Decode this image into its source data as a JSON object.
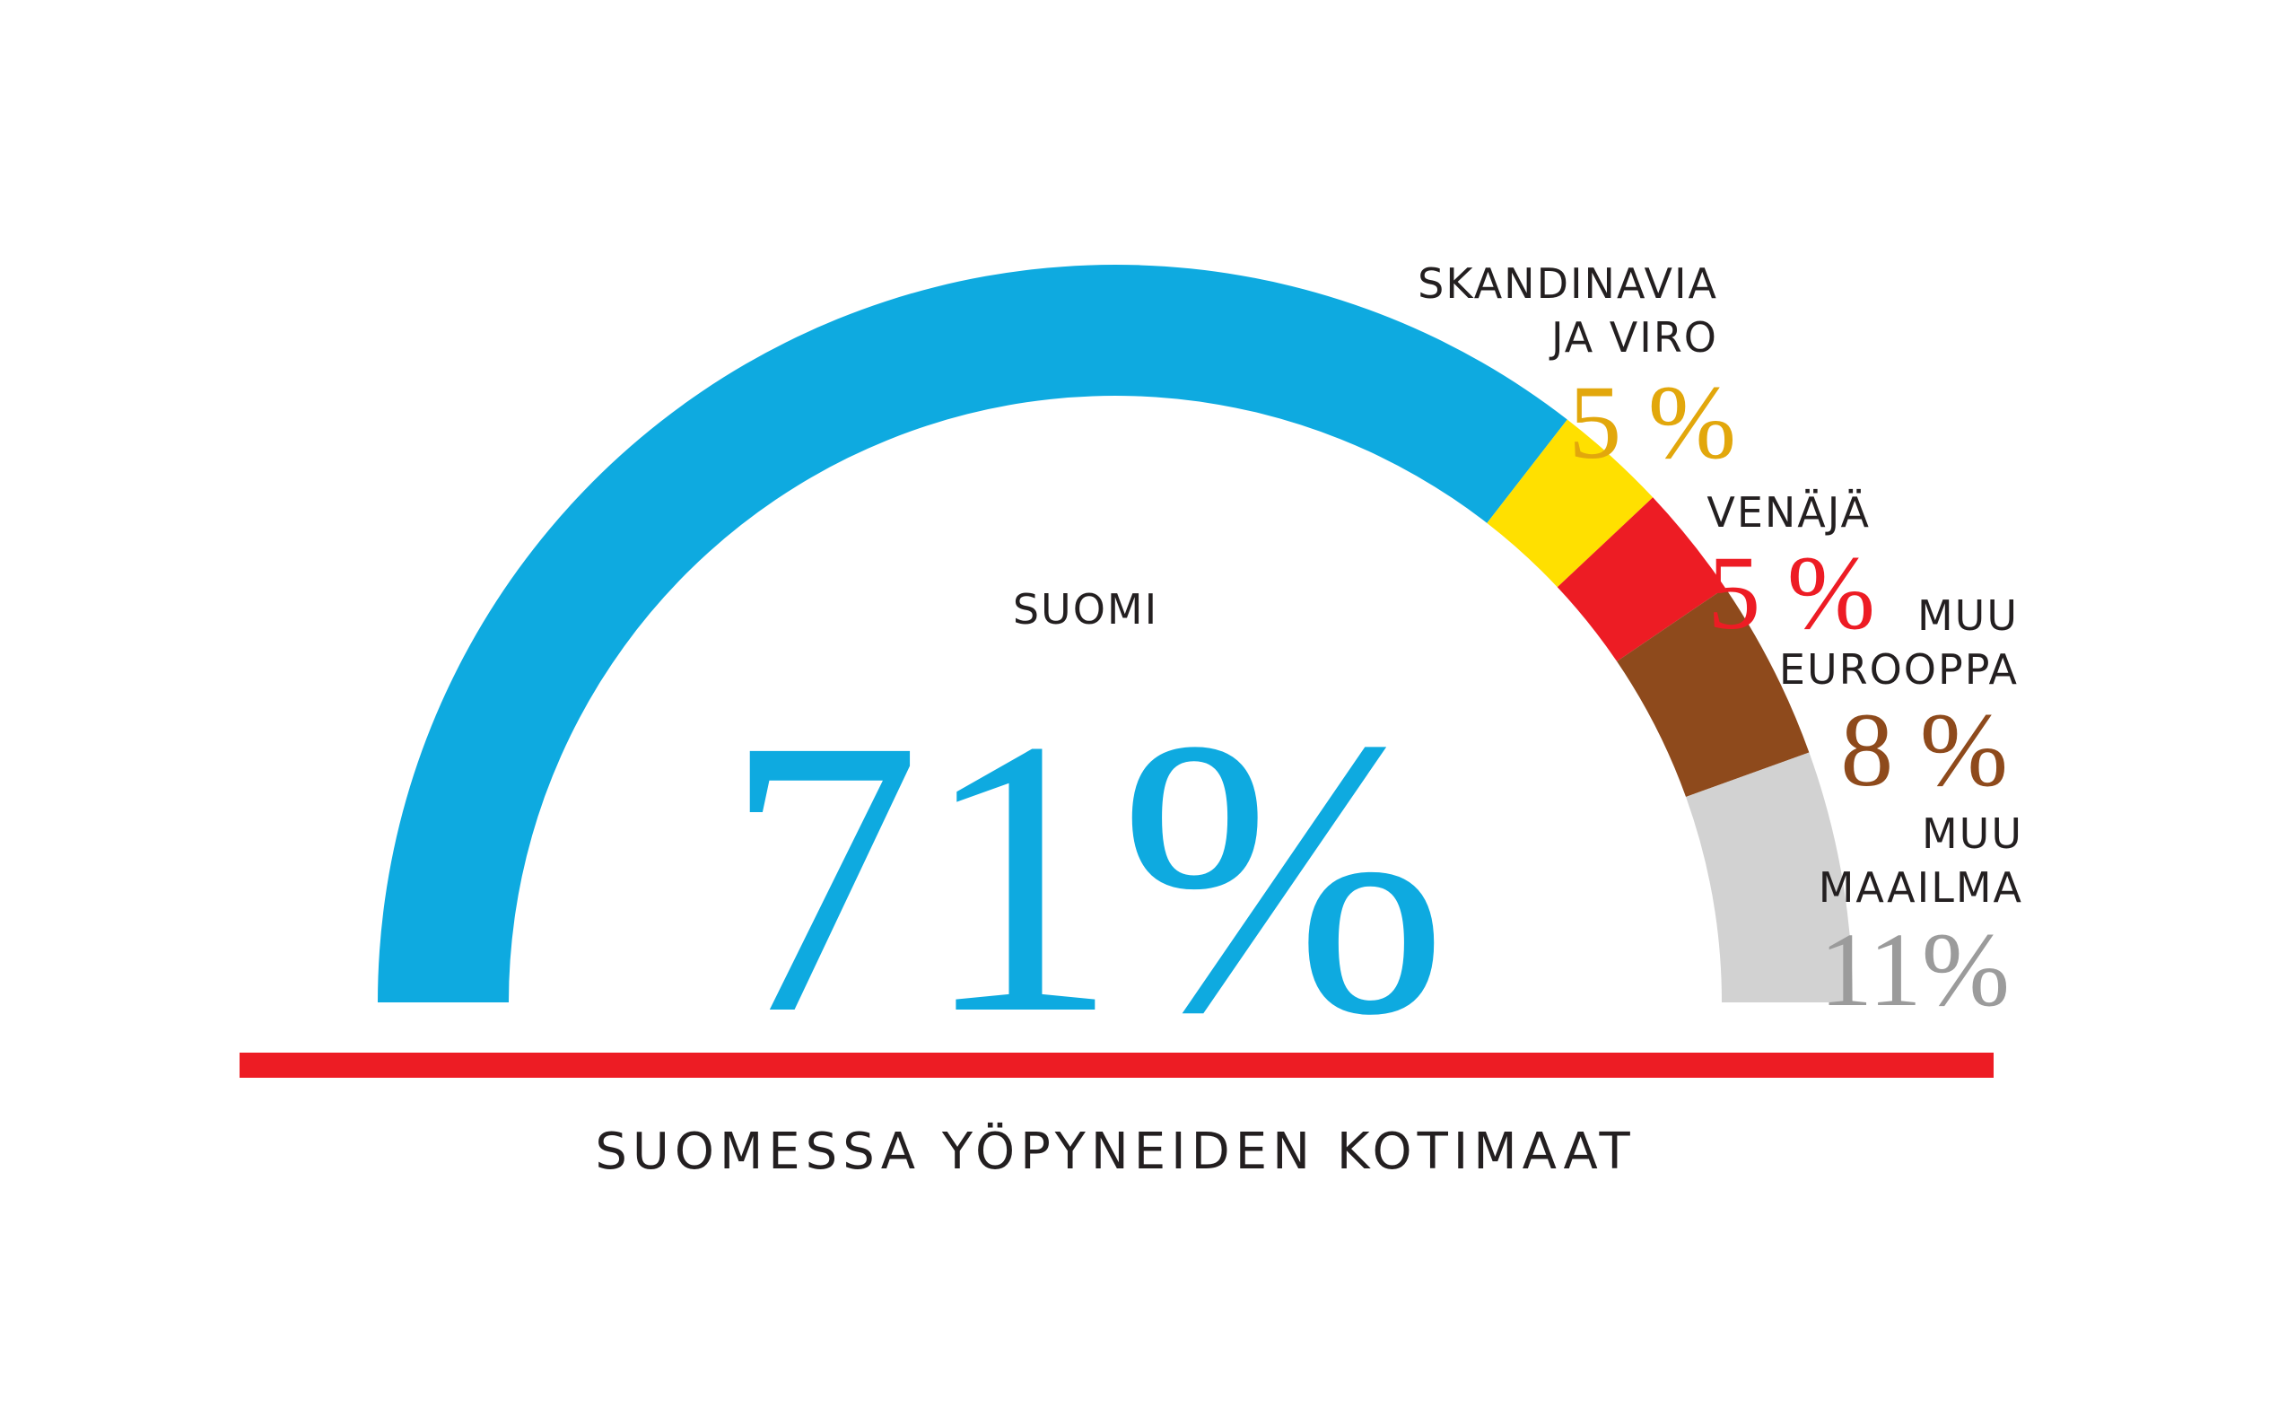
{
  "chart_data": {
    "type": "pie",
    "variant": "semi-donut",
    "title": "SUOMESSA YÖPYNEIDEN KOTIMAAT",
    "series": [
      {
        "name": "SUOMI",
        "label_lines": [
          "SUOMI"
        ],
        "value": 71,
        "value_label": "71%",
        "color": "#0eaae0",
        "label_color": "#0eaae0"
      },
      {
        "name": "SKANDINAVIA JA VIRO",
        "label_lines": [
          "SKANDINAVIA",
          "JA VIRO"
        ],
        "value": 5,
        "value_label": "5 %",
        "color": "#ffe000",
        "label_color": "#e2a70c"
      },
      {
        "name": "VENÄJÄ",
        "label_lines": [
          "VENÄJÄ"
        ],
        "value": 5,
        "value_label": "5 %",
        "color": "#ed1c24",
        "label_color": "#ed1c24"
      },
      {
        "name": "MUU EUROOPPA",
        "label_lines": [
          "MUU",
          "EUROOPPA"
        ],
        "value": 8,
        "value_label": "8 %",
        "color": "#8e4a1c",
        "label_color": "#8e4a1c"
      },
      {
        "name": "MUU MAAILMA",
        "label_lines": [
          "MUU",
          "MAAILMA"
        ],
        "value": 11,
        "value_label": "11%",
        "color": "#d2d2d2",
        "label_color": "#9b9b9b"
      }
    ],
    "baseline_color": "#ed1c24"
  }
}
